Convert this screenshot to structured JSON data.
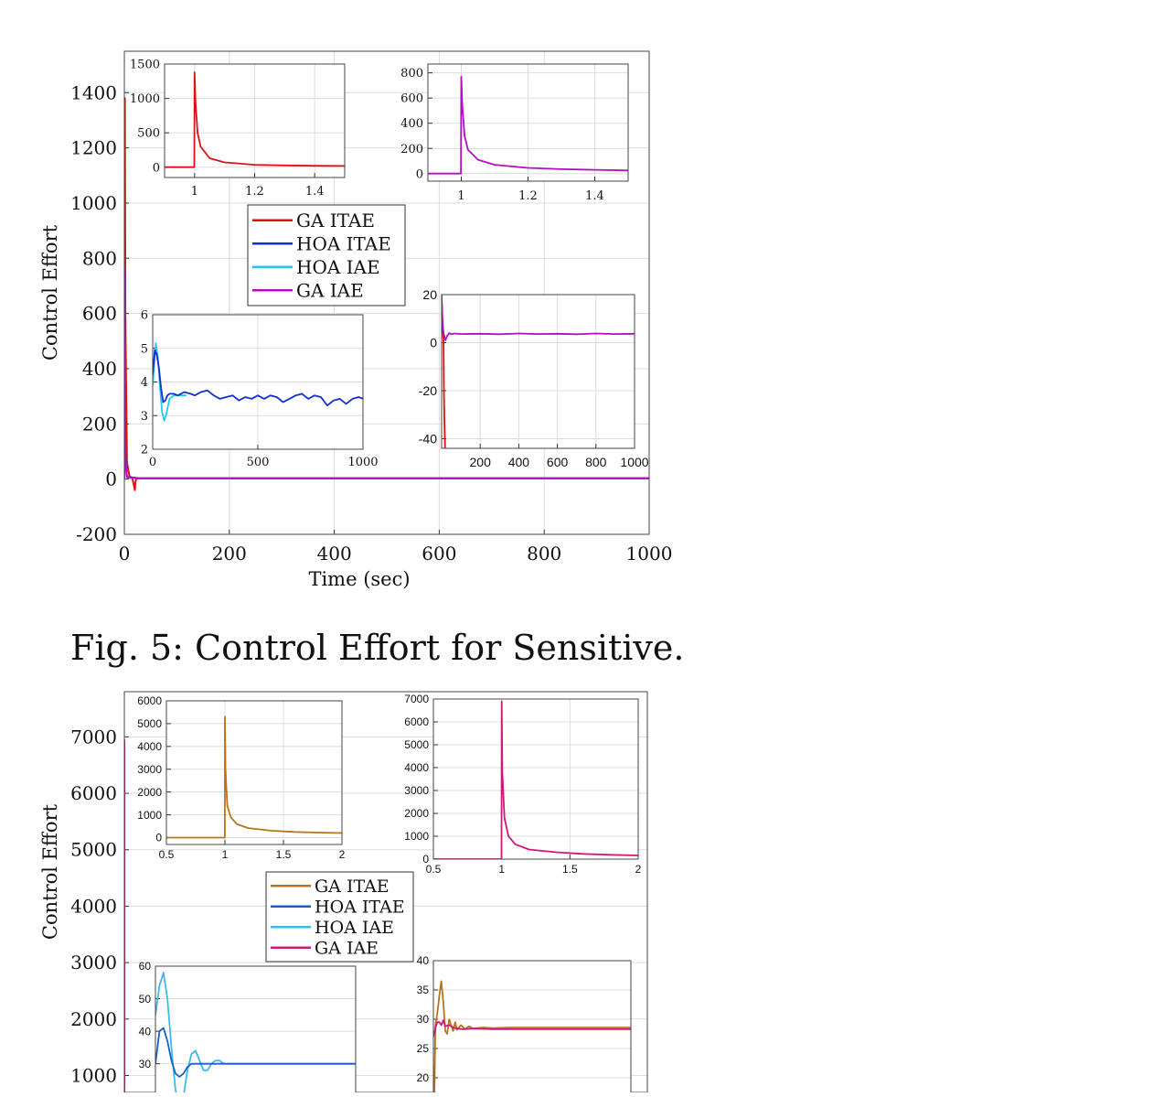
{
  "caption": "Fig. 5: Control Effort for Sensitive.",
  "colors": {
    "fig1": {
      "GA ITAE": "#e01010",
      "HOA ITAE": "#1030d0",
      "HOA IAE": "#28c8ee",
      "GA IAE": "#b010c0"
    },
    "fig2": {
      "GA ITAE": "#b8741c",
      "HOA ITAE": "#1860c8",
      "HOA IAE": "#40b8ec",
      "GA IAE": "#d01878"
    }
  },
  "chart_data": [
    {
      "type": "line",
      "id": "fig1-main",
      "title": "",
      "xlabel": "Time (sec)",
      "ylabel": "Control Effort",
      "xlim": [
        0,
        1000
      ],
      "ylim": [
        -200,
        1550
      ],
      "xticks": [
        "0",
        "200",
        "400",
        "600",
        "800",
        "1000"
      ],
      "yticks": [
        "-200",
        "0",
        "200",
        "400",
        "600",
        "800",
        "1000",
        "1200",
        "1400"
      ],
      "grid": true,
      "legend": {
        "placement": "upper-center",
        "entries": [
          "GA ITAE",
          "HOA ITAE",
          "HOA IAE",
          "GA IAE"
        ]
      },
      "series": [
        {
          "name": "GA ITAE",
          "x": [
            0,
            1,
            2,
            5,
            10,
            15,
            20,
            21,
            23,
            30,
            60,
            200,
            600,
            1000
          ],
          "y": [
            0,
            1380,
            600,
            60,
            10,
            5,
            -40,
            -10,
            2,
            3,
            3,
            3,
            3,
            3
          ]
        },
        {
          "name": "HOA ITAE",
          "x": [
            0,
            1,
            2,
            5,
            30,
            1000
          ],
          "y": [
            0,
            700,
            80,
            8,
            3,
            3
          ]
        },
        {
          "name": "HOA IAE",
          "x": [
            0,
            1,
            2,
            5,
            30,
            1000
          ],
          "y": [
            0,
            500,
            60,
            6,
            3,
            3
          ]
        },
        {
          "name": "GA IAE",
          "x": [
            0,
            1,
            2,
            5,
            30,
            1000
          ],
          "y": [
            0,
            760,
            60,
            6,
            3,
            3
          ]
        }
      ]
    },
    {
      "type": "line",
      "id": "fig1-inset-ga-itae",
      "xlim": [
        0.9,
        1.5
      ],
      "ylim": [
        -150,
        1500
      ],
      "xticks": [
        "1",
        "1.2",
        "1.4"
      ],
      "yticks": [
        "0",
        "500",
        "1000",
        "1500"
      ],
      "series": [
        {
          "name": "GA ITAE",
          "x": [
            0.9,
            0.999,
            1.0,
            1.003,
            1.01,
            1.02,
            1.05,
            1.1,
            1.2,
            1.3,
            1.4,
            1.5
          ],
          "y": [
            0,
            0,
            1380,
            950,
            500,
            300,
            130,
            70,
            35,
            25,
            20,
            18
          ]
        }
      ]
    },
    {
      "type": "line",
      "id": "fig1-inset-ga-iae",
      "xlim": [
        0.9,
        1.5
      ],
      "ylim": [
        -60,
        870
      ],
      "xticks": [
        "1",
        "1.2",
        "1.4"
      ],
      "yticks": [
        "0",
        "200",
        "400",
        "600",
        "800"
      ],
      "series": [
        {
          "name": "GA IAE",
          "x": [
            0.9,
            0.999,
            1.0,
            1.003,
            1.01,
            1.02,
            1.05,
            1.1,
            1.2,
            1.3,
            1.4,
            1.5
          ],
          "y": [
            0,
            0,
            770,
            540,
            300,
            190,
            110,
            70,
            45,
            35,
            30,
            25
          ]
        }
      ]
    },
    {
      "type": "line",
      "id": "fig1-inset-hoa",
      "xlim": [
        0,
        1000
      ],
      "ylim": [
        2,
        6
      ],
      "xticks": [
        "0",
        "500",
        "1000"
      ],
      "yticks": [
        "2",
        "3",
        "4",
        "5",
        "6"
      ],
      "series": [
        {
          "name": "HOA IAE",
          "x": [
            0,
            15,
            25,
            35,
            45,
            55,
            65,
            80,
            100,
            130,
            160
          ],
          "y": [
            3.9,
            5.15,
            4.7,
            3.8,
            3.1,
            2.85,
            3.05,
            3.5,
            3.6,
            3.6,
            3.6
          ]
        },
        {
          "name": "HOA ITAE",
          "x": [
            0,
            10,
            20,
            30,
            40,
            50,
            60,
            70,
            80,
            100,
            120,
            150,
            180,
            200,
            230,
            260,
            290,
            320,
            350,
            380,
            410,
            440,
            470,
            500,
            530,
            560,
            590,
            620,
            650,
            680,
            710,
            740,
            770,
            800,
            830,
            860,
            890,
            920,
            950,
            980,
            1000
          ],
          "y": [
            4.2,
            4.95,
            4.8,
            4.4,
            3.8,
            3.4,
            3.45,
            3.6,
            3.65,
            3.65,
            3.6,
            3.7,
            3.65,
            3.6,
            3.7,
            3.75,
            3.6,
            3.5,
            3.55,
            3.6,
            3.45,
            3.55,
            3.5,
            3.6,
            3.5,
            3.6,
            3.55,
            3.4,
            3.5,
            3.6,
            3.65,
            3.5,
            3.6,
            3.55,
            3.3,
            3.45,
            3.5,
            3.35,
            3.5,
            3.55,
            3.5
          ]
        }
      ]
    },
    {
      "type": "line",
      "id": "fig1-inset-ga",
      "xlim": [
        0,
        1000
      ],
      "ylim": [
        -44,
        20
      ],
      "xticks": [
        "200",
        "400",
        "600",
        "800",
        "1000"
      ],
      "yticks": [
        "-40",
        "-20",
        "0",
        "20"
      ],
      "series": [
        {
          "name": "GA ITAE",
          "x": [
            0,
            5,
            10,
            12,
            15,
            18,
            20
          ],
          "y": [
            20,
            6,
            0,
            -20,
            -35,
            -44,
            -44
          ]
        },
        {
          "name": "GA IAE",
          "x": [
            0,
            5,
            10,
            20,
            30,
            40,
            50,
            70,
            100,
            200,
            300,
            400,
            500,
            600,
            700,
            800,
            900,
            1000
          ],
          "y": [
            18,
            8,
            4,
            1,
            3,
            4,
            3.5,
            3.8,
            3.6,
            3.7,
            3.5,
            3.8,
            3.6,
            3.7,
            3.5,
            3.8,
            3.6,
            3.7
          ]
        }
      ]
    },
    {
      "type": "line",
      "id": "fig2-main",
      "title": "",
      "xlabel": "",
      "ylabel": "Control Effort",
      "xlim": [
        0,
        1000
      ],
      "ylim": [
        700,
        7800
      ],
      "yticks": [
        "1000",
        "2000",
        "3000",
        "4000",
        "5000",
        "6000",
        "7000"
      ],
      "grid": true,
      "legend": {
        "placement": "upper-center",
        "entries": [
          "GA ITAE",
          "HOA ITAE",
          "HOA IAE",
          "GA IAE"
        ]
      },
      "series": [
        {
          "name": "GA IAE",
          "x": [
            0,
            0,
            1.5
          ],
          "y": [
            6950,
            700,
            700
          ]
        }
      ]
    },
    {
      "type": "line",
      "id": "fig2-inset-ga-itae",
      "xlim": [
        0.5,
        2
      ],
      "ylim": [
        -300,
        6000
      ],
      "xticks": [
        "0.5",
        "1",
        "1.5",
        "2"
      ],
      "yticks": [
        "0",
        "1000",
        "2000",
        "3000",
        "4000",
        "5000",
        "6000"
      ],
      "series": [
        {
          "name": "GA ITAE",
          "x": [
            0.5,
            0.999,
            1.0,
            1.005,
            1.02,
            1.05,
            1.1,
            1.2,
            1.4,
            1.6,
            1.8,
            2.0
          ],
          "y": [
            0,
            0,
            5300,
            3000,
            1400,
            900,
            600,
            420,
            300,
            250,
            220,
            200
          ]
        }
      ]
    },
    {
      "type": "line",
      "id": "fig2-inset-ga-iae",
      "xlim": [
        0.5,
        2
      ],
      "ylim": [
        0,
        7000
      ],
      "xticks": [
        "0.5",
        "1",
        "1.5",
        "2"
      ],
      "yticks": [
        "0",
        "1000",
        "2000",
        "3000",
        "4000",
        "5000",
        "6000",
        "7000"
      ],
      "series": [
        {
          "name": "GA IAE",
          "x": [
            0.5,
            0.999,
            1.0,
            1.005,
            1.02,
            1.05,
            1.1,
            1.2,
            1.4,
            1.6,
            1.8,
            2.0
          ],
          "y": [
            0,
            0,
            6900,
            3800,
            1800,
            1000,
            650,
            420,
            300,
            230,
            190,
            160
          ]
        }
      ]
    },
    {
      "type": "line",
      "id": "fig2-inset-hoa",
      "xlim": [
        0,
        100
      ],
      "ylim": [
        15,
        60
      ],
      "yticks": [
        "20",
        "30",
        "40",
        "50",
        "60"
      ],
      "series": [
        {
          "name": "HOA IAE",
          "x": [
            0,
            2,
            4,
            6,
            8,
            10,
            12,
            14,
            16,
            18,
            20,
            22,
            24,
            26,
            28,
            30,
            32,
            34,
            36,
            40,
            45,
            50,
            60,
            100
          ],
          "y": [
            45,
            54,
            58,
            50,
            35,
            22,
            17,
            20,
            28,
            33,
            34,
            31,
            28,
            28,
            30,
            31,
            31,
            30,
            30,
            30,
            30,
            30,
            30,
            30
          ]
        },
        {
          "name": "HOA ITAE",
          "x": [
            0,
            2,
            4,
            6,
            8,
            10,
            12,
            14,
            16,
            18,
            20,
            24,
            28,
            32,
            36,
            40,
            50,
            60,
            100
          ],
          "y": [
            30,
            40,
            41,
            37,
            31,
            27,
            26,
            27,
            29,
            30,
            30,
            30,
            30,
            30,
            30,
            30,
            30,
            30,
            30
          ]
        }
      ]
    },
    {
      "type": "line",
      "id": "fig2-inset-ga",
      "xlim": [
        0,
        100
      ],
      "ylim": [
        15,
        40
      ],
      "yticks": [
        "20",
        "25",
        "30",
        "35",
        "40"
      ],
      "series": [
        {
          "name": "GA ITAE",
          "x": [
            0,
            0.5,
            1,
            2,
            3,
            4,
            5,
            6,
            7,
            8,
            9,
            10,
            11,
            12,
            14,
            16,
            18,
            20,
            25,
            30,
            40,
            60,
            100
          ],
          "y": [
            22,
            17,
            29,
            31,
            34,
            36.5,
            33,
            28,
            27.5,
            30,
            29,
            28,
            29.5,
            28.2,
            29,
            28.3,
            28.8,
            28.4,
            28.6,
            28.5,
            28.6,
            28.6,
            28.6
          ]
        },
        {
          "name": "GA IAE",
          "x": [
            0,
            1,
            2,
            3,
            4,
            5,
            6,
            8,
            10,
            12,
            15,
            20,
            30,
            40,
            60,
            100
          ],
          "y": [
            27,
            28.5,
            29.5,
            29.5,
            29,
            29.8,
            28.8,
            29,
            28.6,
            28.4,
            28.3,
            28.4,
            28.3,
            28.3,
            28.3,
            28.3
          ]
        }
      ]
    }
  ]
}
